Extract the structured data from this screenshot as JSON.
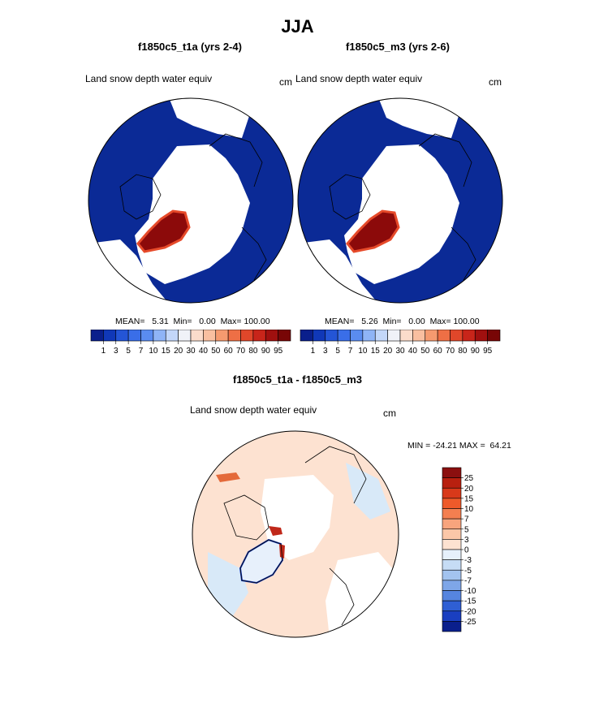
{
  "page": {
    "title": "JJA"
  },
  "colors": {
    "ocean_blue": "#0b2a96",
    "land_white": "#ffffff",
    "greenland_red": "#8c0a0a",
    "diff_light": "#fde2d1",
    "diff_blue": "#d8e9f8"
  },
  "panels": [
    {
      "title": "f1850c5_t1a (yrs 2-4)",
      "variable_label": "Land snow depth water equiv",
      "units": "cm",
      "stats": "MEAN=   5.31  Min=   0.00  Max= 100.00"
    },
    {
      "title": "f1850c5_m3 (yrs 2-6)",
      "variable_label": "Land snow depth water equiv",
      "units": "cm",
      "stats": "MEAN=   5.26  Min=   0.00  Max= 100.00"
    },
    {
      "title": "f1850c5_t1a - f1850c5_m3",
      "variable_label": "Land snow depth water equiv",
      "units": "cm",
      "minmax": "MIN = -24.21 MAX =  64.21"
    }
  ],
  "chart_data": [
    {
      "type": "heatmap",
      "title": "f1850c5_t1a (yrs 2-4)",
      "projection": "north polar stereographic",
      "colorbar_levels": [
        "1",
        "3",
        "5",
        "7",
        "10",
        "15",
        "20",
        "30",
        "40",
        "50",
        "60",
        "70",
        "80",
        "90",
        "95"
      ],
      "colorbar_colors": [
        "#0a1f8c",
        "#1038b8",
        "#2455d6",
        "#3a6ee8",
        "#5a8cf0",
        "#8fb4f6",
        "#c3d7f9",
        "#f0f2f8",
        "#fbdccb",
        "#f9bfa0",
        "#f59a6f",
        "#ee6f45",
        "#e0472a",
        "#c8251a",
        "#a0100f",
        "#780606"
      ],
      "mean": 5.31,
      "min": 0.0,
      "max": 100.0
    },
    {
      "type": "heatmap",
      "title": "f1850c5_m3 (yrs 2-6)",
      "projection": "north polar stereographic",
      "colorbar_levels": [
        "1",
        "3",
        "5",
        "7",
        "10",
        "15",
        "20",
        "30",
        "40",
        "50",
        "60",
        "70",
        "80",
        "90",
        "95"
      ],
      "colorbar_colors": [
        "#0a1f8c",
        "#1038b8",
        "#2455d6",
        "#3a6ee8",
        "#5a8cf0",
        "#8fb4f6",
        "#c3d7f9",
        "#f0f2f8",
        "#fbdccb",
        "#f9bfa0",
        "#f59a6f",
        "#ee6f45",
        "#e0472a",
        "#c8251a",
        "#a0100f",
        "#780606"
      ],
      "mean": 5.26,
      "min": 0.0,
      "max": 100.0
    },
    {
      "type": "heatmap",
      "title": "f1850c5_t1a - f1850c5_m3",
      "projection": "north polar stereographic",
      "colorbar_levels": [
        "25",
        "20",
        "15",
        "10",
        "7",
        "5",
        "3",
        "0",
        "-3",
        "-5",
        "-7",
        "-10",
        "-15",
        "-20",
        "-25"
      ],
      "colorbar_colors": [
        "#8b0f0f",
        "#b8200f",
        "#d8391a",
        "#ee5a2a",
        "#f47f50",
        "#f8a47d",
        "#fbc7a8",
        "#fde2d1",
        "#e6f0fb",
        "#c6dcf5",
        "#a3c3ef",
        "#7ea6e8",
        "#5685df",
        "#2f5fd4",
        "#1a3fc0",
        "#0a1f8c"
      ],
      "min": -24.21,
      "max": 64.21
    }
  ]
}
